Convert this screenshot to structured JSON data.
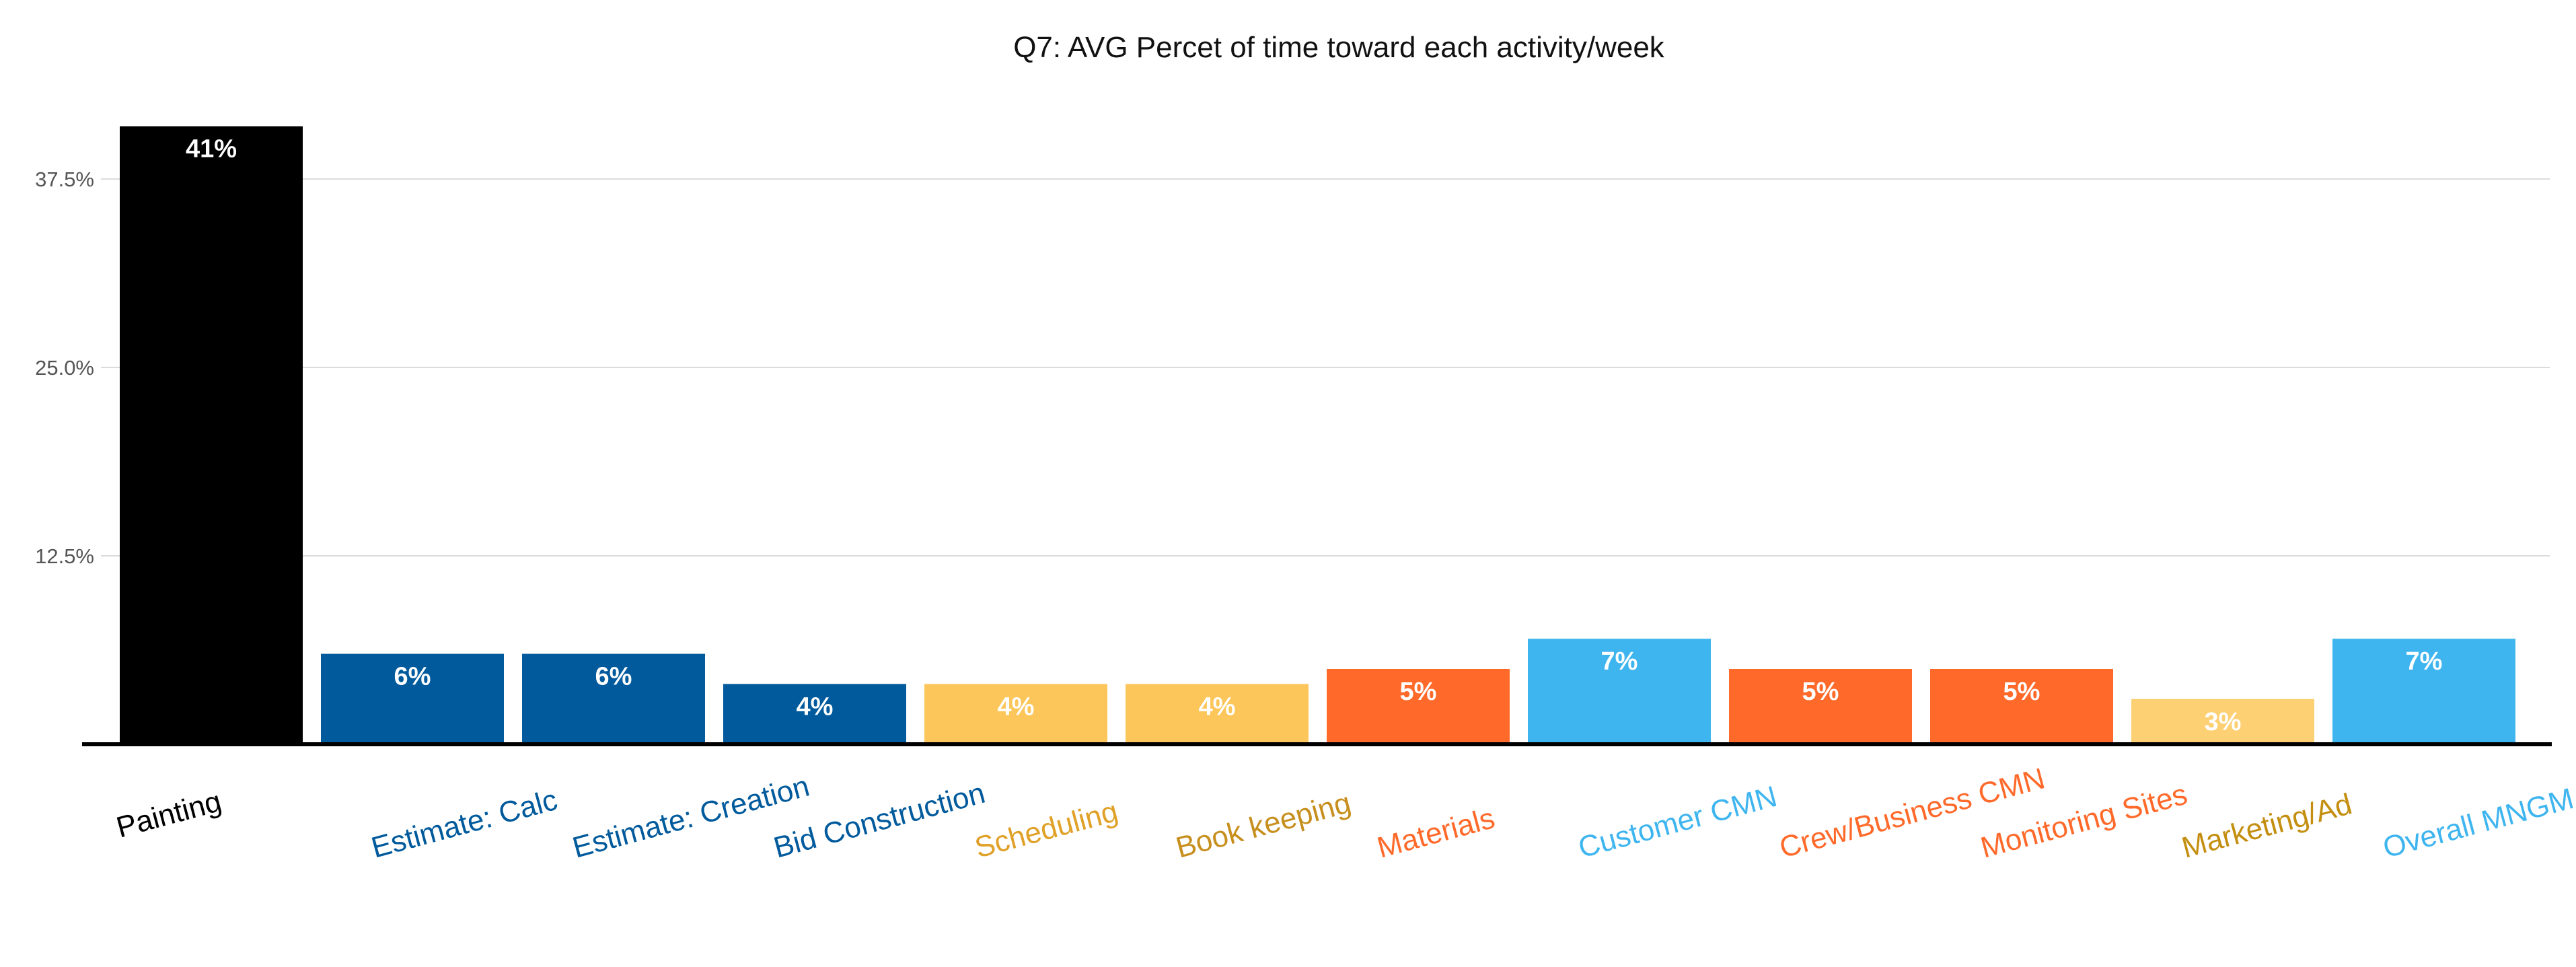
{
  "chart_data": {
    "type": "bar",
    "title": "Q7: AVG Percet of time toward each activity/week",
    "xlabel": "",
    "ylabel": "",
    "ylim": [
      0,
      42
    ],
    "yticks": [
      12.5,
      25.0,
      37.5
    ],
    "ytick_labels": [
      "12.5%",
      "25.0%",
      "37.5%"
    ],
    "grid": true,
    "legend": "none",
    "categories": [
      "Painting",
      "Estimate: Calc",
      "Estimate: Creation",
      "Bid Construction",
      "Scheduling",
      "Book keeping",
      "Materials",
      "Customer CMN",
      "Crew/Business CMN",
      "Monitoring Sites",
      "Marketing/Ad",
      "Overall MNGM"
    ],
    "values": [
      41,
      6,
      6,
      4,
      4,
      4,
      5,
      7,
      5,
      5,
      3,
      7
    ],
    "value_labels": [
      "41%",
      "6%",
      "6%",
      "4%",
      "4%",
      "4%",
      "5%",
      "7%",
      "5%",
      "5%",
      "3%",
      "7%"
    ],
    "bar_colors": [
      "#000000",
      "#005a9c",
      "#005a9c",
      "#005a9c",
      "#fcc65a",
      "#fcc65a",
      "#ff6a2b",
      "#3fb5ef",
      "#ff6a2b",
      "#ff6a2b",
      "#fdd074",
      "#3fb5ef"
    ],
    "label_colors": [
      "#000000",
      "#005a9c",
      "#005a9c",
      "#005a9c",
      "#e0a128",
      "#c78f1e",
      "#ff6a2b",
      "#3fb5ef",
      "#ff6a2b",
      "#ff6a2b",
      "#c48f11",
      "#3fb5ef"
    ]
  }
}
